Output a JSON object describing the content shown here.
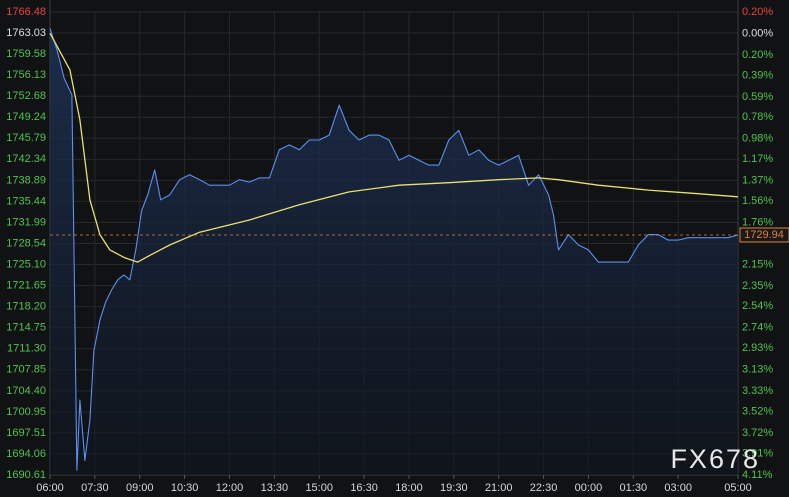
{
  "chart_data": {
    "type": "line",
    "watermark": "FX678",
    "background": "#111214",
    "grid": true,
    "grid_color": "#26282b",
    "up_color": "#e8443a",
    "down_color": "#4fc34f",
    "flat_color": "#dddddd",
    "ylim": [
      1690.61,
      1766.48
    ],
    "yticks": [
      1766.48,
      1763.03,
      1759.58,
      1756.13,
      1752.68,
      1749.24,
      1745.79,
      1742.34,
      1738.89,
      1735.44,
      1731.99,
      1728.54,
      {
        "value": 1725.1,
        "label": "1725.10"
      },
      1721.65,
      {
        "value": 1718.2,
        "label": "1718.20"
      },
      1714.75,
      {
        "value": 1711.3,
        "label": "1711.30"
      },
      1707.85,
      {
        "value": 1704.4,
        "label": "1704.40"
      },
      1700.95,
      1697.51,
      1694.06,
      1690.61
    ],
    "y2lim": [
      -4.11,
      0.2
    ],
    "y2ticks": [
      {
        "value": 0.2,
        "label": "0.20%"
      },
      {
        "value": 0,
        "label": "0.00%"
      },
      {
        "value": -0.2,
        "label": "0.20%"
      },
      {
        "value": -0.39,
        "label": "0.39%"
      },
      {
        "value": -0.59,
        "label": "0.59%"
      },
      {
        "value": -0.78,
        "label": "0.78%"
      },
      {
        "value": -0.98,
        "label": "0.98%"
      },
      {
        "value": -1.17,
        "label": "1.17%"
      },
      {
        "value": -1.37,
        "label": "1.37%"
      },
      {
        "value": -1.56,
        "label": "1.56%"
      },
      {
        "value": -1.76,
        "label": "1.76%"
      },
      {
        "value": -2.15,
        "label": "2.15%"
      },
      {
        "value": -2.35,
        "label": "2.35%"
      },
      {
        "value": -2.54,
        "label": "2.54%"
      },
      {
        "value": -2.74,
        "label": "2.74%"
      },
      {
        "value": -2.93,
        "label": "2.93%"
      },
      {
        "value": -3.13,
        "label": "3.13%"
      },
      {
        "value": -3.33,
        "label": "3.33%"
      },
      {
        "value": -3.52,
        "label": "3.52%"
      },
      {
        "value": -3.72,
        "label": "3.72%"
      },
      {
        "value": -3.91,
        "label": "3.91%"
      },
      {
        "value": -4.11,
        "label": "4.11%"
      }
    ],
    "xticks": [
      "06:00",
      "07:30",
      "09:00",
      "10:30",
      "12:00",
      "13:30",
      "15:00",
      "16:30",
      "18:00",
      "19:30",
      "21:00",
      "22:30",
      "00:00",
      "01:30",
      "03:00",
      "05:00"
    ],
    "last_price": 1729.94,
    "last_price_color": "#e0803a",
    "series": [
      {
        "name": "price",
        "color": "#5b8ff0",
        "x": [
          "06:00",
          "06:14",
          "06:28",
          "06:44",
          "06:54",
          "07:00",
          "07:10",
          "07:20",
          "07:28",
          "07:40",
          "07:52",
          "08:04",
          "08:16",
          "08:28",
          "08:40",
          "08:52",
          "09:04",
          "09:16",
          "09:30",
          "09:42",
          "10:00",
          "10:20",
          "10:40",
          "11:00",
          "11:20",
          "11:40",
          "12:00",
          "12:20",
          "12:40",
          "13:00",
          "13:20",
          "13:40",
          "14:00",
          "14:20",
          "14:40",
          "15:00",
          "15:20",
          "15:40",
          "16:00",
          "16:20",
          "16:40",
          "17:00",
          "17:20",
          "17:40",
          "18:00",
          "18:20",
          "18:40",
          "19:00",
          "19:20",
          "19:40",
          "20:00",
          "20:20",
          "20:40",
          "21:00",
          "21:20",
          "21:40",
          "22:00",
          "22:20",
          "22:40",
          "22:50",
          "23:00",
          "23:20",
          "23:40",
          "00:00",
          "00:20",
          "00:40",
          "01:00",
          "01:20",
          "01:40",
          "02:00",
          "02:20",
          "02:40",
          "03:00",
          "03:20",
          "04:00",
          "04:40",
          "05:00"
        ],
        "values": [
          1763.8,
          1760.3,
          1755.7,
          1752.9,
          1691.4,
          1702.9,
          1693.0,
          1699.6,
          1711.0,
          1716.0,
          1719.0,
          1721.0,
          1722.6,
          1723.4,
          1722.6,
          1727.5,
          1734.0,
          1736.5,
          1740.6,
          1735.7,
          1736.5,
          1739.0,
          1739.8,
          1739.0,
          1738.1,
          1738.1,
          1738.1,
          1739.0,
          1738.6,
          1739.3,
          1739.3,
          1743.9,
          1744.7,
          1743.9,
          1745.5,
          1745.5,
          1746.3,
          1751.2,
          1747.1,
          1745.5,
          1746.3,
          1746.3,
          1745.5,
          1742.2,
          1743.0,
          1742.2,
          1741.4,
          1741.4,
          1745.5,
          1747.1,
          1743.0,
          1743.9,
          1742.2,
          1741.4,
          1742.2,
          1743.0,
          1738.1,
          1739.8,
          1736.5,
          1733.2,
          1727.5,
          1730.0,
          1728.3,
          1727.5,
          1725.5,
          1725.5,
          1725.5,
          1725.5,
          1728.3,
          1730.0,
          1730.0,
          1729.1,
          1729.1,
          1729.5,
          1729.5,
          1729.5,
          1729.94
        ]
      },
      {
        "name": "average",
        "color": "#e8e070",
        "x": [
          "06:00",
          "06:40",
          "07:00",
          "07:20",
          "07:40",
          "08:00",
          "08:30",
          "08:56",
          "09:20",
          "10:00",
          "11:00",
          "12:40",
          "14:20",
          "16:00",
          "17:40",
          "19:20",
          "21:00",
          "22:20",
          "23:00",
          "00:20",
          "02:00",
          "03:40",
          "05:00"
        ],
        "values": [
          1763.0,
          1757.0,
          1748.8,
          1735.7,
          1730.0,
          1727.5,
          1726.2,
          1725.5,
          1726.6,
          1728.3,
          1730.4,
          1732.4,
          1734.9,
          1737.0,
          1738.1,
          1738.5,
          1739.0,
          1739.3,
          1739.0,
          1738.1,
          1737.3,
          1736.7,
          1736.2
        ]
      }
    ]
  }
}
